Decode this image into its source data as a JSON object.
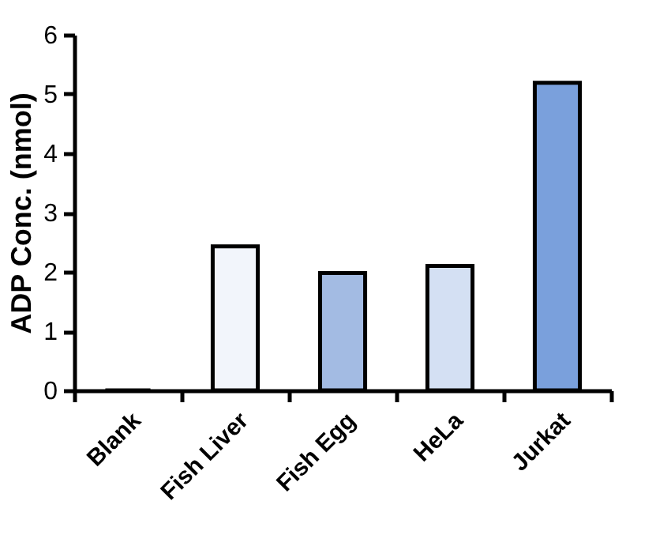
{
  "chart_data": {
    "type": "bar",
    "ylabel": "ADP Conc. (nmol)",
    "categories": [
      "Blank",
      "Fish Liver",
      "Fish Egg",
      "HeLa",
      "Jurkat"
    ],
    "values": [
      0,
      2.43,
      1.98,
      2.1,
      5.19
    ],
    "colors": [
      "#ffffff",
      "#f2f5fb",
      "#a3bbe3",
      "#d4e0f3",
      "#7aa0dc"
    ],
    "ylim": [
      0,
      6
    ],
    "yticks": [
      0,
      1,
      2,
      3,
      4,
      5,
      6
    ],
    "grid": false,
    "legend": false
  }
}
